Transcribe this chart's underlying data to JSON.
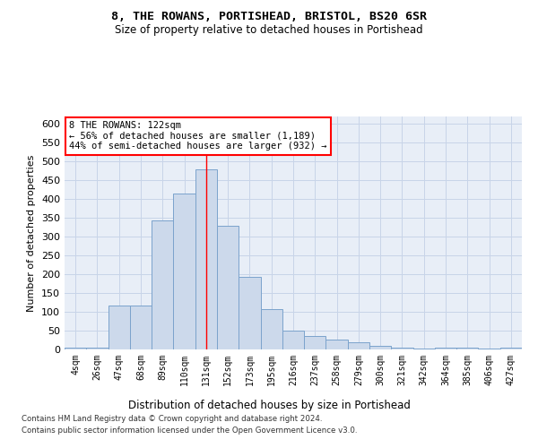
{
  "title": "8, THE ROWANS, PORTISHEAD, BRISTOL, BS20 6SR",
  "subtitle": "Size of property relative to detached houses in Portishead",
  "xlabel": "Distribution of detached houses by size in Portishead",
  "ylabel": "Number of detached properties",
  "bar_color": "#ccd9eb",
  "bar_edge_color": "#7ba3cc",
  "categories": [
    "4sqm",
    "26sqm",
    "47sqm",
    "68sqm",
    "89sqm",
    "110sqm",
    "131sqm",
    "152sqm",
    "173sqm",
    "195sqm",
    "216sqm",
    "237sqm",
    "258sqm",
    "279sqm",
    "300sqm",
    "321sqm",
    "342sqm",
    "364sqm",
    "385sqm",
    "406sqm",
    "427sqm"
  ],
  "bar_heights": [
    5,
    5,
    118,
    118,
    343,
    415,
    480,
    330,
    192,
    107,
    49,
    36,
    27,
    18,
    10,
    5,
    3,
    5,
    5,
    3,
    5
  ],
  "vline_x": 6.0,
  "annotation_text": "8 THE ROWANS: 122sqm\n← 56% of detached houses are smaller (1,189)\n44% of semi-detached houses are larger (932) →",
  "ylim": [
    0,
    620
  ],
  "yticks": [
    0,
    50,
    100,
    150,
    200,
    250,
    300,
    350,
    400,
    450,
    500,
    550,
    600
  ],
  "footer1": "Contains HM Land Registry data © Crown copyright and database right 2024.",
  "footer2": "Contains public sector information licensed under the Open Government Licence v3.0.",
  "grid_color": "#c8d4e8",
  "plot_bg": "#e8eef7"
}
